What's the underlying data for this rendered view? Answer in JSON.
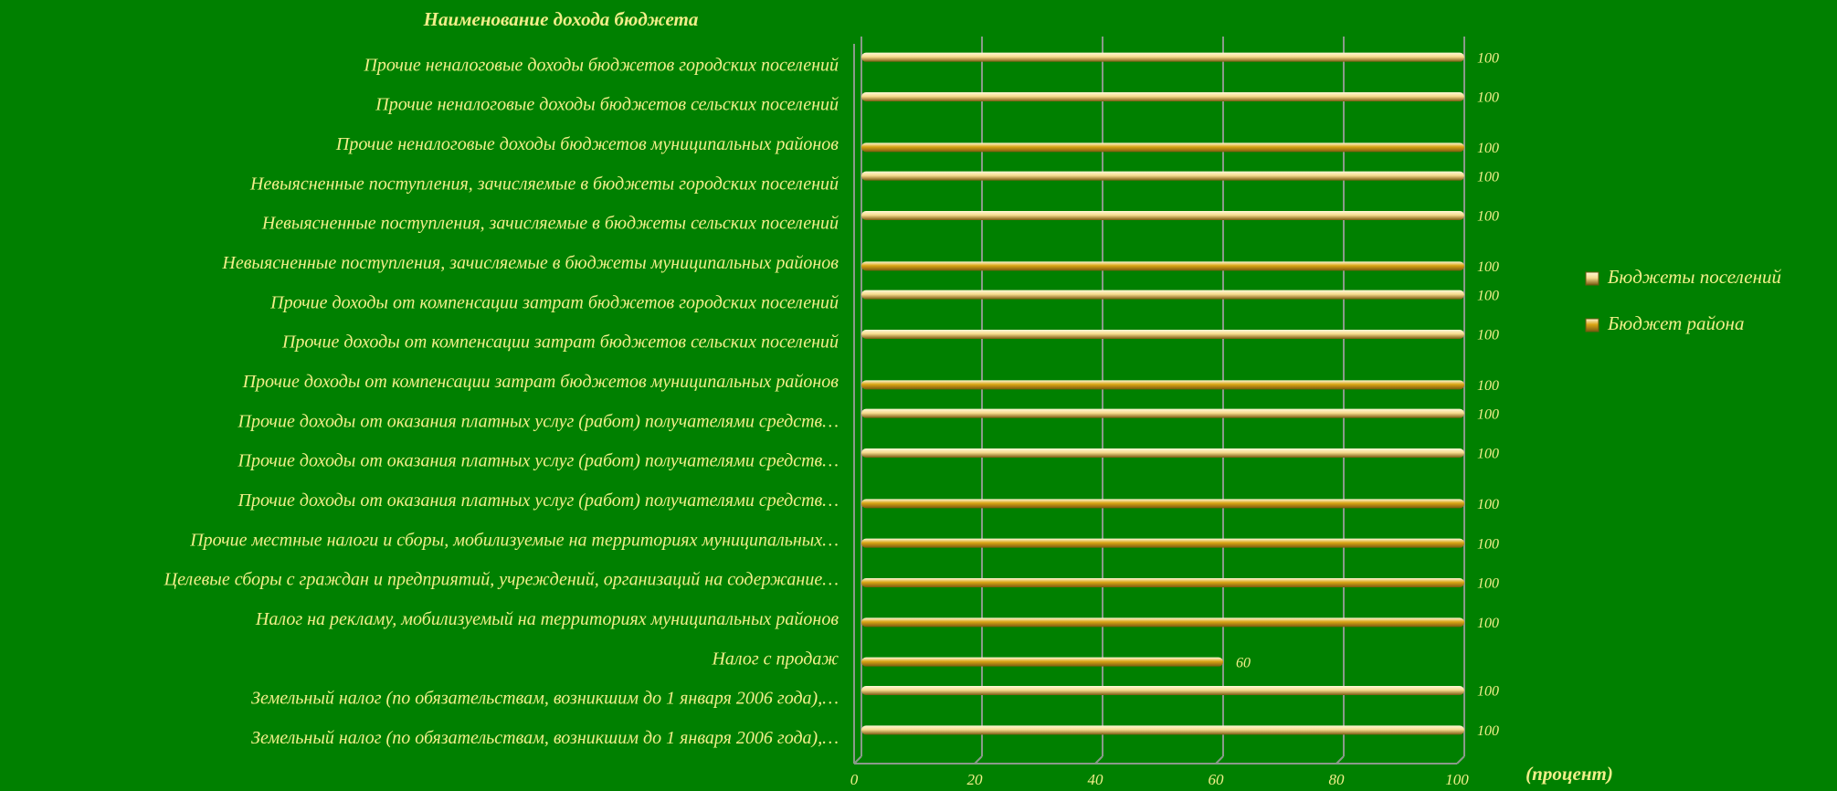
{
  "chart_data": {
    "type": "bar",
    "orientation": "horizontal",
    "y_label": "Наименование дохода бюджета",
    "x_label": "(процент)",
    "categories": [
      "Прочие неналоговые доходы бюджетов городских поселений",
      "Прочие неналоговые доходы бюджетов сельских поселений",
      "Прочие неналоговые доходы бюджетов муниципальных районов",
      "Невыясненные поступления, зачисляемые в бюджеты городских поселений",
      "Невыясненные поступления, зачисляемые в бюджеты сельских поселений",
      "Невыясненные поступления, зачисляемые в бюджеты муниципальных районов",
      "Прочие доходы от компенсации затрат бюджетов городских поселений",
      "Прочие доходы от компенсации затрат бюджетов сельских поселений",
      "Прочие доходы от компенсации затрат бюджетов муниципальных районов",
      "Прочие доходы от оказания платных услуг (работ) получателями средств…",
      "Прочие доходы от оказания платных услуг (работ) получателями средств…",
      "Прочие доходы от оказания платных услуг (работ) получателями средств…",
      "Прочие местные налоги и сборы, мобилизуемые на территориях муниципальных…",
      "Целевые сборы с граждан и предприятий, учреждений, организаций на содержание…",
      "Налог на рекламу, мобилизуемый на территориях муниципальных районов",
      "Налог с продаж",
      "Земельный налог (по обязательствам, возникшим до 1 января 2006 года),…",
      "Земельный налог (по обязательствам, возникшим до 1 января 2006 года),…"
    ],
    "series": [
      {
        "name": "Бюджеты поселений",
        "color": "#f6dc8e",
        "values": [
          100,
          100,
          null,
          100,
          100,
          null,
          100,
          100,
          null,
          100,
          100,
          null,
          null,
          null,
          null,
          null,
          100,
          100
        ]
      },
      {
        "name": "Бюджет района",
        "color": "#d9a514",
        "values": [
          null,
          null,
          100,
          null,
          null,
          100,
          null,
          null,
          100,
          null,
          null,
          100,
          100,
          100,
          100,
          60,
          null,
          null
        ]
      }
    ],
    "xlim": [
      0,
      100
    ],
    "xticks": [
      0,
      20,
      40,
      60,
      80,
      100
    ],
    "grid": true,
    "legend": "right"
  }
}
